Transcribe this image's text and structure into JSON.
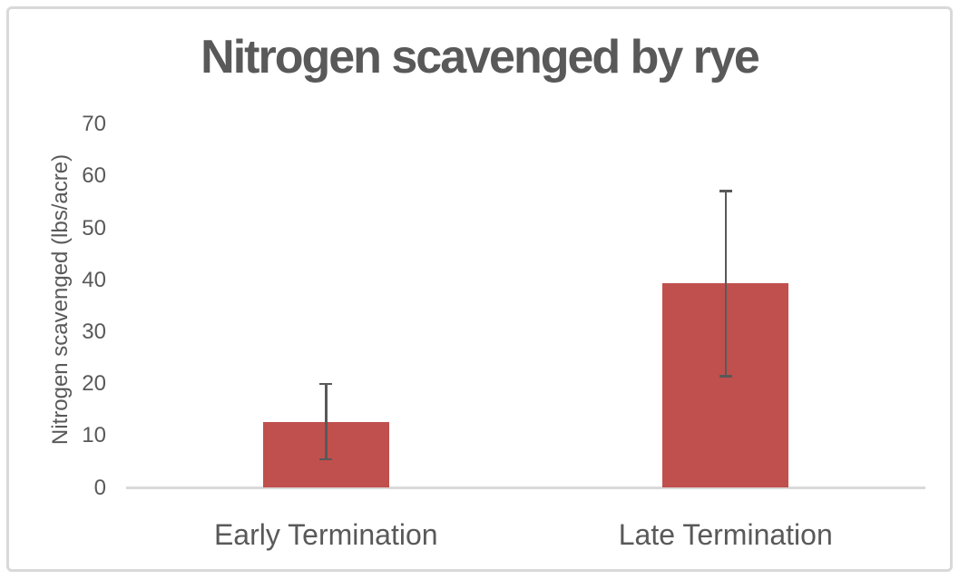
{
  "chart_data": {
    "type": "bar",
    "title": "Nitrogen scavenged by rye",
    "ylabel": "Nitrogen scavenged (lbs/acre)",
    "xlabel": "",
    "categories": [
      "Early Termination",
      "Late Termination"
    ],
    "values": [
      12.7,
      39.5
    ],
    "error_bars": [
      {
        "low": 5.5,
        "high": 20.0
      },
      {
        "low": 21.5,
        "high": 57.2
      }
    ],
    "ylim": [
      0,
      70
    ],
    "yticks": [
      0,
      10,
      20,
      30,
      40,
      50,
      60,
      70
    ],
    "grid": false,
    "legend": "none",
    "colors": {
      "bar": "#C0504D",
      "error_bar": "#595959",
      "text": "#595959",
      "axis_line": "#D9D9D9",
      "frame_border": "#D9D9D9",
      "background": "#FFFFFF"
    }
  }
}
